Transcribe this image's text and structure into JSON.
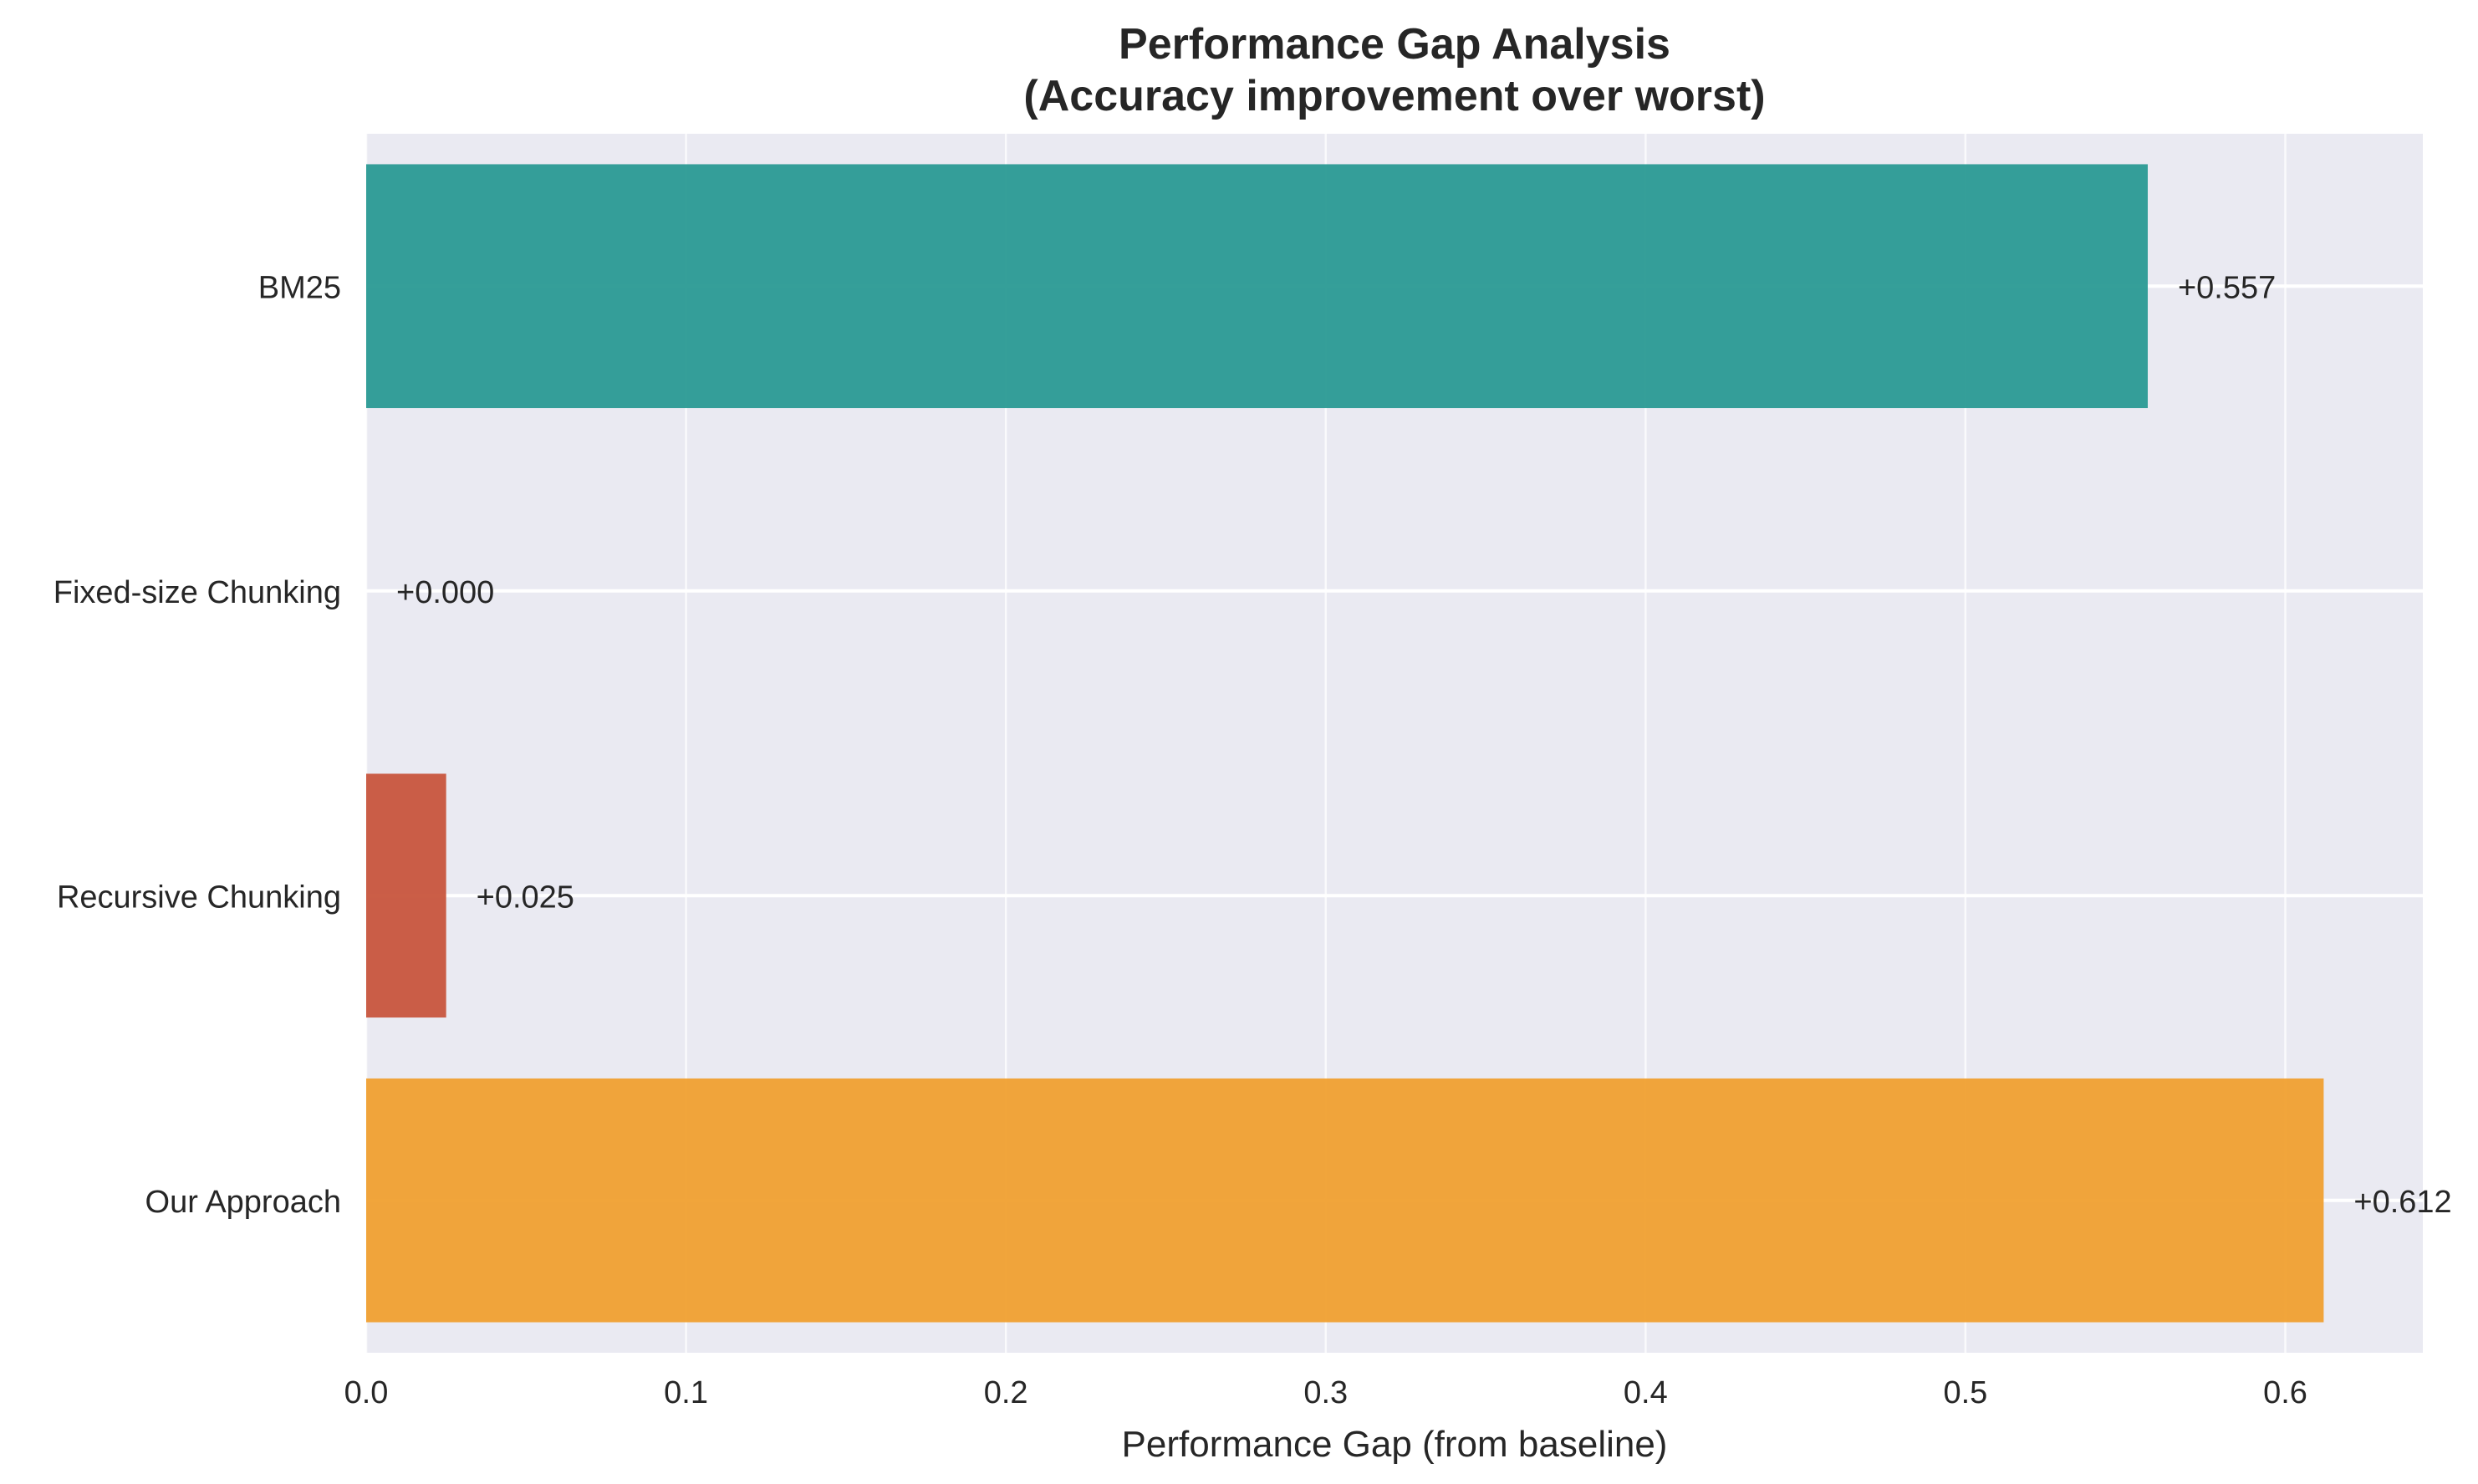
{
  "chart_data": {
    "type": "bar",
    "orientation": "horizontal",
    "title": "Performance Gap Analysis",
    "subtitle": "(Accuracy improvement over worst)",
    "xlabel": "Performance Gap (from baseline)",
    "ylabel": "",
    "categories": [
      "BM25",
      "Fixed-size Chunking",
      "Recursive Chunking",
      "Our Approach"
    ],
    "values": [
      0.557,
      0.0,
      0.025,
      0.612
    ],
    "data_labels": [
      "+0.557",
      "+0.000",
      "+0.025",
      "+0.612"
    ],
    "colors": [
      "#2a9a93",
      "#c8553d",
      "#c8553d",
      "#f0a030"
    ],
    "xlim": [
      0,
      0.643
    ],
    "xticks": [
      0.0,
      0.1,
      0.2,
      0.3,
      0.4,
      0.5,
      0.6
    ],
    "xtick_labels": [
      "0.0",
      "0.1",
      "0.2",
      "0.3",
      "0.4",
      "0.5",
      "0.6"
    ],
    "grid": true,
    "plot_background": "#eaeaf2",
    "grid_color": "#ffffff"
  }
}
